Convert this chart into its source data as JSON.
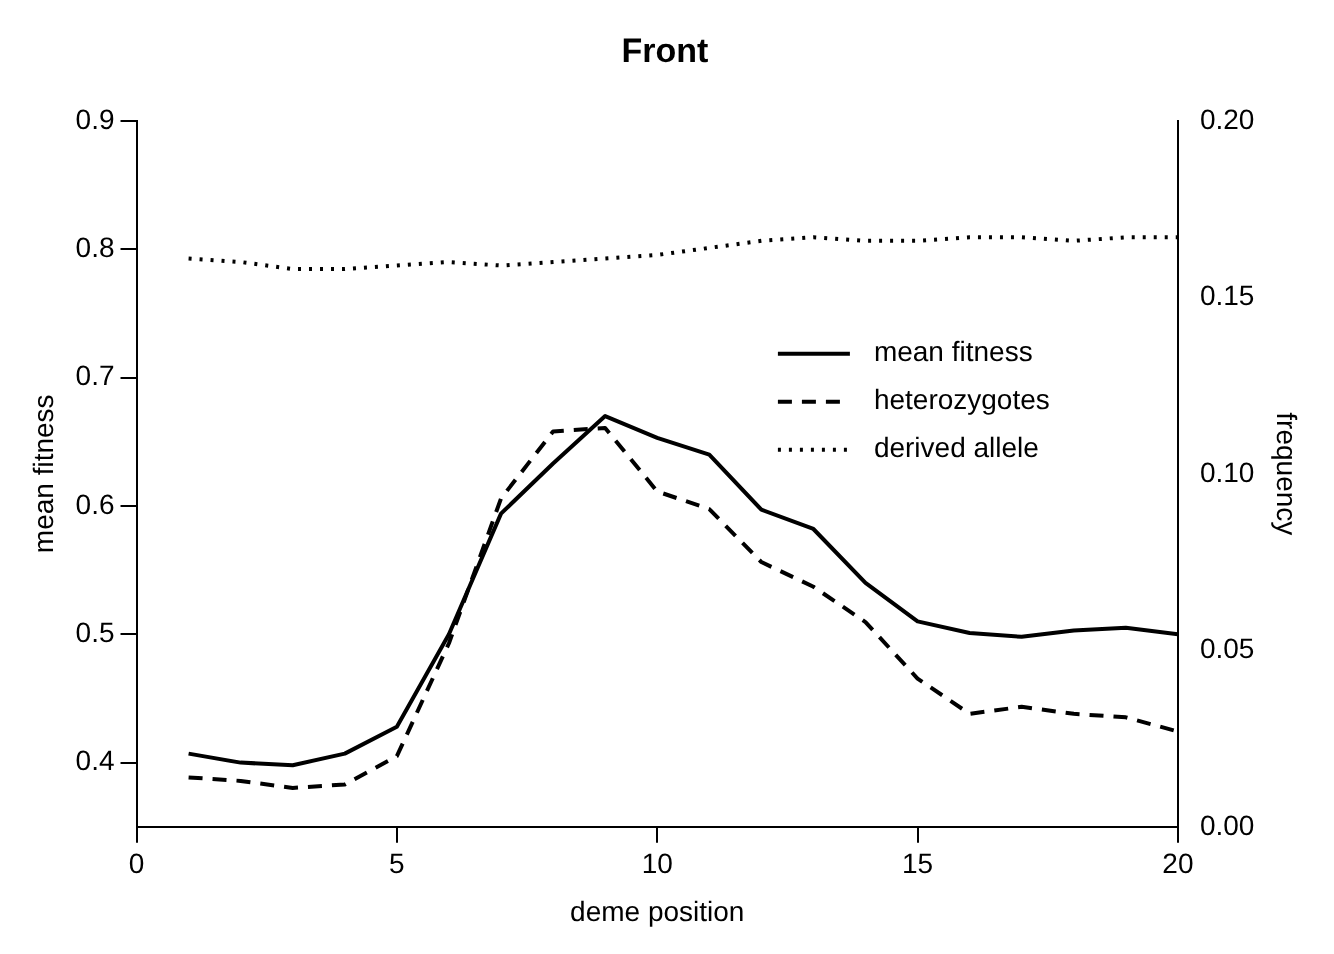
{
  "chart_data": {
    "type": "line",
    "title": "Front",
    "xlabel": "deme position",
    "ylabel": "mean fitness",
    "y2label": "frequency",
    "x": [
      1,
      2,
      3,
      4,
      5,
      6,
      7,
      8,
      9,
      10,
      11,
      12,
      13,
      14,
      15,
      16,
      17,
      18,
      19,
      20
    ],
    "xlim": [
      0,
      20
    ],
    "xticks": [
      0,
      5,
      10,
      15,
      20
    ],
    "ylim": [
      0.35,
      0.9
    ],
    "yticks": [
      0.4,
      0.5,
      0.6,
      0.7,
      0.8,
      0.9
    ],
    "y2lim": [
      0,
      0.2
    ],
    "y2ticks": [
      {
        "value": 0,
        "label": "0.00"
      },
      {
        "value": 0.05,
        "label": "0.05"
      },
      {
        "value": 0.1,
        "label": "0.10"
      },
      {
        "value": 0.15,
        "label": "0.15"
      },
      {
        "value": 0.2,
        "label": "0.20"
      }
    ],
    "grid": false,
    "legend": "right",
    "marker": "none",
    "series": [
      {
        "name": "mean fitness",
        "color": "#000000",
        "line_style": "solid",
        "values": [
          0.407,
          0.4,
          0.398,
          0.407,
          0.428,
          0.5,
          0.594,
          0.633,
          0.67,
          0.653,
          0.64,
          0.597,
          0.582,
          0.54,
          0.51,
          0.501,
          0.498,
          0.503,
          0.505,
          0.5
        ]
      },
      {
        "name": "heterozygotes",
        "color": "#000000",
        "line_style": "dashed",
        "axis": "y2",
        "values": [
          0.014,
          0.013,
          0.011,
          0.012,
          0.02,
          0.052,
          0.093,
          0.112,
          0.113,
          0.095,
          0.09,
          0.075,
          0.068,
          0.058,
          0.042,
          0.032,
          0.034,
          0.032,
          0.031,
          0.027
        ]
      },
      {
        "name": "derived allele",
        "color": "#000000",
        "line_style": "dotted",
        "axis": "y2",
        "values": [
          0.161,
          0.16,
          0.158,
          0.158,
          0.159,
          0.16,
          0.159,
          0.16,
          0.161,
          0.162,
          0.164,
          0.166,
          0.167,
          0.166,
          0.166,
          0.167,
          0.167,
          0.166,
          0.167,
          0.167
        ]
      }
    ]
  }
}
